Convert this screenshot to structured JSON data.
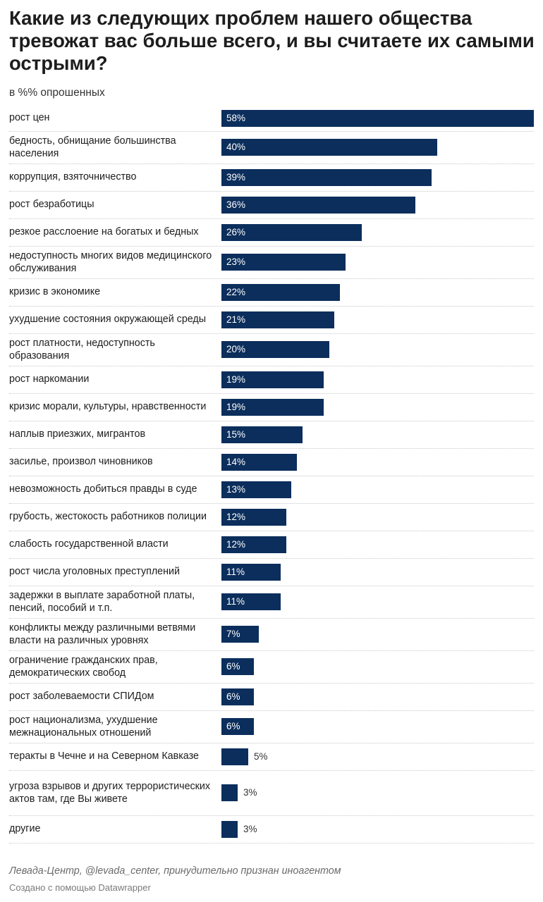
{
  "chart_data": {
    "type": "bar",
    "orientation": "horizontal",
    "title": "Какие из следующих проблем нашего общества тревожат вас больше всего, и вы считаете их самыми острыми?",
    "subtitle": "в %% опрошенных",
    "value_suffix": "%",
    "xlim": [
      0,
      58
    ],
    "grid": false,
    "categories": [
      "рост цен",
      "бедность, обнищание большинства населения",
      "коррупция, взяточничество",
      "рост безработицы",
      "резкое расслоение на богатых и бедных",
      "недоступность многих видов медицинского обслуживания",
      "кризис в экономике",
      "ухудшение состояния окружающей среды",
      "рост платности, недоступность образования",
      "рост наркомании",
      "кризис морали, культуры, нравственности",
      "наплыв приезжих, мигрантов",
      "засилье, произвол чиновников",
      "невозможность добиться правды в суде",
      "грубость, жестокость работников полиции",
      "слабость государственной власти",
      "рост числа уголовных преступлений",
      "задержки в выплате заработной платы, пенсий, пособий и т.п.",
      "конфликты между различными ветвями власти на различных уровнях",
      "ограничение гражданских прав, демократических свобод",
      "рост заболеваемости СПИДом",
      "рост национализма, ухудшение межнациональных отношений",
      "теракты в Чечне и на Северном Кавказе",
      "угроза взрывов и других террористических актов там, где Вы живете",
      "другие"
    ],
    "values": [
      58,
      40,
      39,
      36,
      26,
      23,
      22,
      21,
      20,
      19,
      19,
      15,
      14,
      13,
      12,
      12,
      11,
      11,
      7,
      6,
      6,
      6,
      5,
      3,
      3
    ],
    "bar_color": "#0b2e5c"
  },
  "footer": {
    "source": "Левада-Центр, @levada_center, принудительно признан иноагентом",
    "credit": "Создано с помощью Datawrapper"
  }
}
